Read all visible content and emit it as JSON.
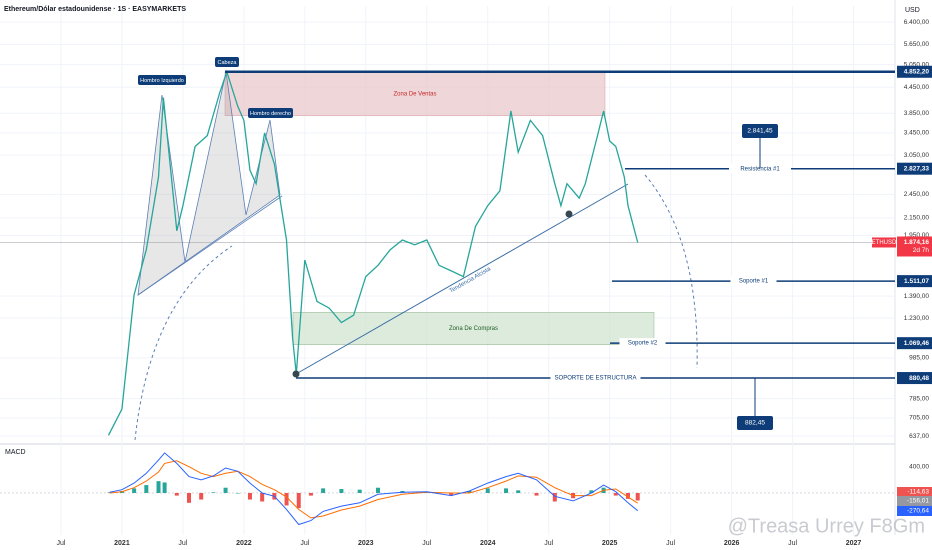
{
  "chart_data": [
    {
      "type": "line",
      "title": "Ethereum/Dólar estadounidense · 1S · EASYMARKETS",
      "currency": "USD",
      "symbol": "ETHUSD",
      "countdown": "2d 7h",
      "color": "#26a69a",
      "log_scale": true,
      "grid": true,
      "xlim": [
        2020.0,
        2027.34
      ],
      "xticks": [
        {
          "value": 2020.5,
          "label": "Jul"
        },
        2021,
        {
          "value": 2021.5,
          "label": "Jul"
        },
        2022,
        {
          "value": 2022.5,
          "label": "Jul"
        },
        2023,
        {
          "value": 2023.5,
          "label": "Jul"
        },
        2024,
        {
          "value": 2024.5,
          "label": "Jul"
        },
        2025,
        {
          "value": 2025.5,
          "label": "Jul"
        },
        2026,
        {
          "value": 2026.5,
          "label": "Jul"
        },
        2027
      ],
      "ylim": [
        620,
        7000
      ],
      "yticks": [
        {
          "value": 6400,
          "label": "6.400,00"
        },
        {
          "value": 5650,
          "label": "5.650,00"
        },
        {
          "value": 5050,
          "label": "5.050,00"
        },
        {
          "value": 4450,
          "label": "4.450,00"
        },
        {
          "value": 3850,
          "label": "3.850,00"
        },
        {
          "value": 3450,
          "label": "3.450,00"
        },
        {
          "value": 3050,
          "label": "3.050,00"
        },
        {
          "value": 2450,
          "label": "2.450,00"
        },
        {
          "value": 2150,
          "label": "2.150,00"
        },
        {
          "value": 1950,
          "label": "1.950,00"
        },
        {
          "value": 1390,
          "label": "1.390,00"
        },
        {
          "value": 1230,
          "label": "1.230,00"
        },
        {
          "value": 985,
          "label": "985,00"
        },
        {
          "value": 785,
          "label": "785,00"
        },
        {
          "value": 705,
          "label": "705,00"
        },
        {
          "value": 637,
          "label": "637,00"
        }
      ],
      "x": [
        2020.89,
        2021.0,
        2021.1,
        2021.2,
        2021.3,
        2021.34,
        2021.45,
        2021.5,
        2021.6,
        2021.7,
        2021.8,
        2021.86,
        2021.95,
        2022.0,
        2022.05,
        2022.1,
        2022.17,
        2022.25,
        2022.35,
        2022.4,
        2022.43,
        2022.5,
        2022.6,
        2022.7,
        2022.8,
        2022.9,
        2023.0,
        2023.1,
        2023.2,
        2023.3,
        2023.4,
        2023.5,
        2023.6,
        2023.7,
        2023.8,
        2023.9,
        2024.0,
        2024.1,
        2024.19,
        2024.25,
        2024.35,
        2024.45,
        2024.55,
        2024.6,
        2024.65,
        2024.75,
        2024.8,
        2024.9,
        2024.95,
        2025.0,
        2025.05,
        2025.12,
        2025.15,
        2025.23
      ],
      "values": [
        640,
        740,
        1400,
        1800,
        2700,
        4200,
        2000,
        2300,
        3200,
        3400,
        4300,
        4852,
        4000,
        3700,
        2800,
        2600,
        3450,
        2900,
        1900,
        1100,
        900,
        1700,
        1350,
        1300,
        1200,
        1250,
        1550,
        1650,
        1800,
        1900,
        1850,
        1900,
        1650,
        1600,
        1550,
        2050,
        2300,
        2500,
        3900,
        3100,
        3700,
        3400,
        2600,
        2300,
        2600,
        2400,
        2600,
        3400,
        3900,
        3300,
        3200,
        2700,
        2300,
        1874.16
      ],
      "last": {
        "value": 1874.16,
        "label": "1.874,16"
      },
      "levels": [
        {
          "value": 4852.2,
          "value_label": "4.852,20"
        },
        {
          "name": "Resistencia #1",
          "value": 2827.33,
          "value_label": "2.827,33"
        },
        {
          "name": "Soporte #1",
          "value": 1511.07,
          "value_label": "1.511,07"
        },
        {
          "name": "Soporte #2",
          "value": 1069.46,
          "value_label": "1.069,46"
        },
        {
          "name": "SOPORTE DE ESTRUCTURA",
          "value": 880.48,
          "value_label": "880,48"
        }
      ],
      "zones": [
        {
          "name": "Zona De Ventas",
          "range": [
            3800,
            4850
          ],
          "color": "#e8c4c8"
        },
        {
          "name": "Zona De Compras",
          "range": [
            1060,
            1270
          ],
          "color": "#cfe2cf"
        }
      ],
      "callouts": [
        {
          "value": 2841.45,
          "label": "2.841,45"
        },
        {
          "value": 882.45,
          "label": "882,45"
        }
      ],
      "annotations": {
        "left_shoulder": "Hombro Izquierdo",
        "head": "Cabeza",
        "right_shoulder": "Hombro derecho",
        "trend": "Tendencia Alcista"
      },
      "watermark": "@Treasa Urrey F8Gm"
    },
    {
      "type": "line",
      "title": "MACD",
      "ylim": [
        -640,
        700
      ],
      "yticks": [
        {
          "value": 400,
          "label": "400,00"
        }
      ],
      "x": [
        2020.9,
        2021.0,
        2021.1,
        2021.2,
        2021.3,
        2021.35,
        2021.45,
        2021.55,
        2021.65,
        2021.75,
        2021.85,
        2021.95,
        2022.05,
        2022.15,
        2022.25,
        2022.35,
        2022.45,
        2022.55,
        2022.65,
        2022.8,
        2022.95,
        2023.1,
        2023.3,
        2023.5,
        2023.7,
        2023.85,
        2024.0,
        2024.15,
        2024.25,
        2024.4,
        2024.55,
        2024.7,
        2024.85,
        2024.95,
        2025.05,
        2025.15,
        2025.23
      ],
      "histogram": {
        "color_up": "#26a69a",
        "color_down": "#ef5350",
        "last_label": "-114,63",
        "values": [
          10,
          30,
          70,
          120,
          180,
          160,
          -40,
          -150,
          -100,
          10,
          80,
          0,
          -100,
          -130,
          -100,
          -190,
          -230,
          -40,
          70,
          60,
          50,
          80,
          30,
          10,
          -40,
          30,
          70,
          70,
          40,
          -40,
          -130,
          -80,
          40,
          80,
          -40,
          -90,
          -114.63
        ]
      },
      "series": [
        {
          "color": "#ff6d00",
          "last_label": "-156,01",
          "values": [
            0,
            20,
            80,
            180,
            320,
            450,
            490,
            400,
            300,
            250,
            300,
            330,
            250,
            130,
            50,
            -60,
            -250,
            -380,
            -350,
            -260,
            -200,
            -100,
            -20,
            10,
            0,
            0,
            80,
            180,
            260,
            240,
            80,
            -40,
            -40,
            40,
            60,
            -60,
            -156.01
          ]
        },
        {
          "color": "#2962ff",
          "last_label": "-270,64",
          "values": [
            10,
            50,
            150,
            300,
            500,
            610,
            450,
            250,
            200,
            260,
            380,
            330,
            150,
            0,
            -50,
            -250,
            -480,
            -420,
            -280,
            -200,
            -150,
            -20,
            10,
            20,
            -40,
            30,
            150,
            250,
            300,
            200,
            -50,
            -120,
            0,
            120,
            20,
            -150,
            -270.64
          ]
        }
      ]
    }
  ]
}
